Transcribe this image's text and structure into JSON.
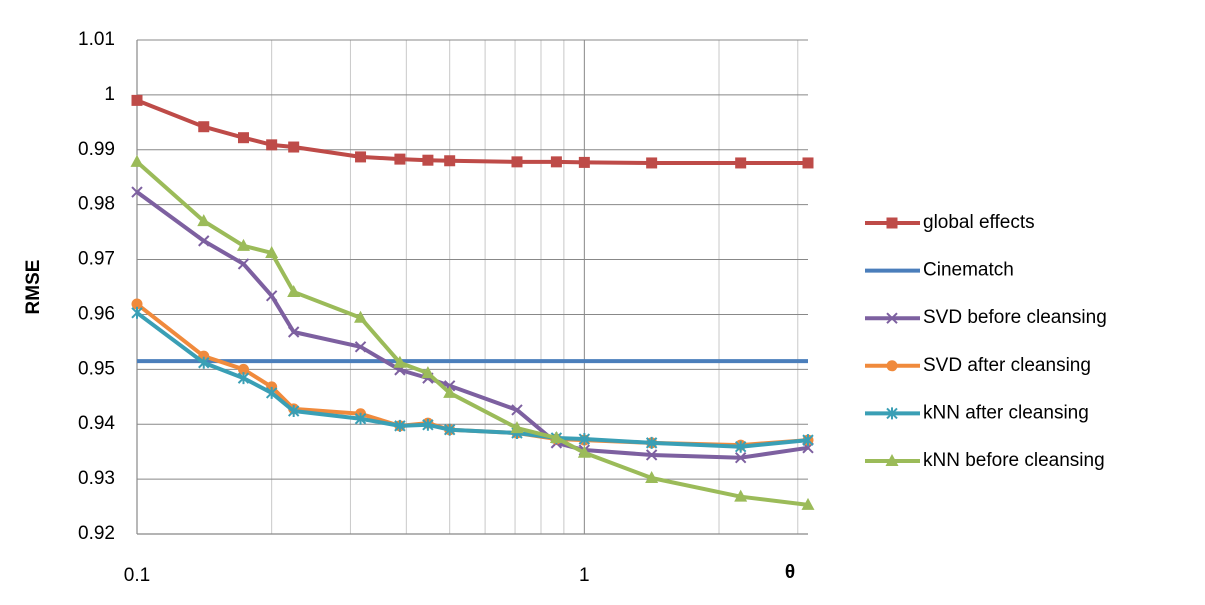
{
  "chart_data": {
    "type": "line",
    "xscale": "log",
    "grid": true,
    "xlabel": "θ",
    "ylabel": "RMSE",
    "xlim": [
      0.1,
      3.162
    ],
    "ylim": [
      0.92,
      1.01
    ],
    "xticks": [
      0.1,
      1
    ],
    "minor_xticks": [
      0.2,
      0.3,
      0.4,
      0.5,
      0.6,
      0.7,
      0.8,
      0.9,
      2,
      3
    ],
    "yticks": [
      0.92,
      0.93,
      0.94,
      0.95,
      0.96,
      0.97,
      0.98,
      0.99,
      1,
      1.01
    ],
    "x": [
      0.1,
      0.141,
      0.173,
      0.2,
      0.224,
      0.316,
      0.387,
      0.447,
      0.5,
      0.707,
      0.866,
      1,
      1.414,
      2.236,
      3.162
    ],
    "series": [
      {
        "name": "global effects",
        "color": "#be4b48",
        "marker": "square",
        "values": [
          0.999,
          0.9942,
          0.9922,
          0.9909,
          0.9905,
          0.9887,
          0.9883,
          0.9881,
          0.988,
          0.9878,
          0.9878,
          0.9877,
          0.9876,
          0.9876,
          0.9876
        ]
      },
      {
        "name": "Cinematch",
        "color": "#4a7ebb",
        "x": [
          0.1,
          3.162
        ],
        "values": [
          0.9515,
          0.9515
        ]
      },
      {
        "name": "SVD before cleansing",
        "color": "#7d60a0",
        "marker": "x",
        "values": [
          0.9823,
          0.9734,
          0.9692,
          0.9634,
          0.9568,
          0.9541,
          0.9499,
          0.9484,
          0.947,
          0.9426,
          0.9366,
          0.9353,
          0.9344,
          0.9339,
          0.9357
        ]
      },
      {
        "name": "SVD after cleansing",
        "color": "#f08a3c",
        "marker": "circle",
        "values": [
          0.9619,
          0.9524,
          0.95,
          0.9468,
          0.9428,
          0.9419,
          0.9397,
          0.9402,
          0.939,
          0.9384,
          0.9373,
          0.9371,
          0.9366,
          0.9362,
          0.9371
        ]
      },
      {
        "name": "kNN after cleansing",
        "color": "#3a9fb5",
        "marker": "star",
        "values": [
          0.9603,
          0.9512,
          0.9484,
          0.9457,
          0.9424,
          0.941,
          0.9397,
          0.9399,
          0.939,
          0.9384,
          0.9375,
          0.9373,
          0.9366,
          0.9359,
          0.9371
        ]
      },
      {
        "name": "kNN before cleansing",
        "color": "#9bbb59",
        "marker": "triangle",
        "values": [
          0.9878,
          0.977,
          0.9725,
          0.9712,
          0.9641,
          0.9594,
          0.9512,
          0.9493,
          0.9457,
          0.9393,
          0.9375,
          0.9348,
          0.9302,
          0.9268,
          0.9253
        ]
      }
    ]
  }
}
